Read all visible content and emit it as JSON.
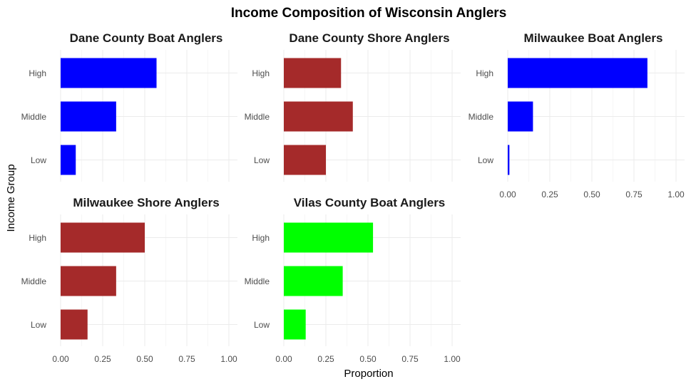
{
  "chart_data": {
    "type": "bar",
    "orientation": "horizontal",
    "title": "Income Composition of Wisconsin Anglers",
    "xlabel": "Proportion",
    "ylabel": "Income Group",
    "xlim": [
      0,
      1
    ],
    "xticks": [
      "0.00",
      "0.25",
      "0.50",
      "0.75",
      "1.00"
    ],
    "categories": [
      "High",
      "Middle",
      "Low"
    ],
    "grid": true,
    "panels": [
      {
        "title": "Dane County Boat Anglers",
        "color": "#0000ff",
        "values": [
          0.57,
          0.33,
          0.09
        ]
      },
      {
        "title": "Dane County Shore Anglers",
        "color": "#a52a2a",
        "values": [
          0.34,
          0.41,
          0.25
        ]
      },
      {
        "title": "Milwaukee Boat Anglers",
        "color": "#0000ff",
        "values": [
          0.83,
          0.15,
          0.01
        ]
      },
      {
        "title": "Milwaukee Shore Anglers",
        "color": "#a52a2a",
        "values": [
          0.5,
          0.33,
          0.16
        ]
      },
      {
        "title": "Vilas County Boat Anglers",
        "color": "#00ff00",
        "values": [
          0.53,
          0.35,
          0.13
        ]
      }
    ]
  }
}
